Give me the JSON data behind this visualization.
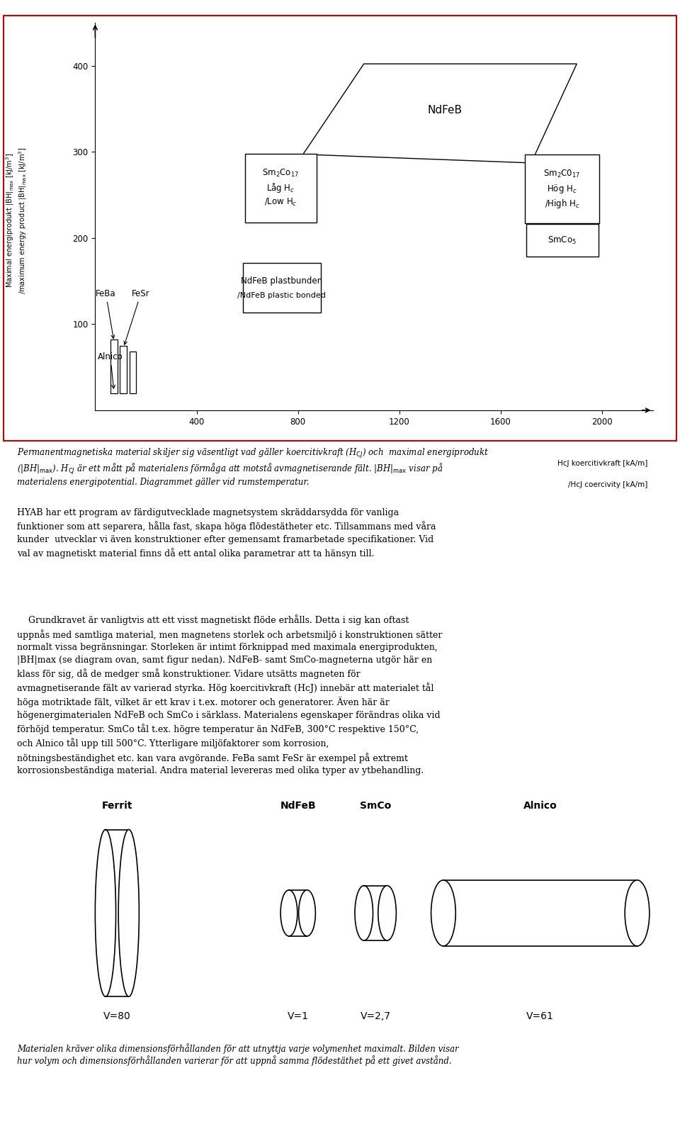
{
  "background_color": "#ffffff",
  "page_width": 9.6,
  "page_height": 15.86,
  "chart": {
    "xlim": [
      0,
      2200
    ],
    "ylim": [
      0,
      450
    ],
    "xticks": [
      400,
      800,
      1200,
      1600,
      2000
    ],
    "yticks": [
      100,
      200,
      300,
      400
    ],
    "xlabel_line1": "HᴄJ koercitivkraft [kA/m]",
    "xlabel_line2": "/HᴄJ coercivity [kA/m]"
  },
  "caption_italic": "Permanentmagnetiska material skiljer sig väsentligt vad gäller koercitivkraft (HᴄJ) och  maximal energiprodukt\n(|BH|max). HᴄJ är ett mått på materialens förmåga att motstå avmagnetiserande fält. |BH|max visar på\nmaterialens energipotential. Diagrammet gäller vid rumstemperatur.",
  "para1": "HYAB har ett program av färdigutvecklade magnetsystem skräddarsydda för vanliga\nfunktioner som att separera, hålla fast, skapa höga flödestätheter etc. Tillsammans med våra\nkunder  utvecklar vi även konstruktioner efter gemensamt framarbetade specifikationer. Vid\nval av magnetiskt material finns då ett antal olika parametrar att ta hänsyn till.",
  "para2": "    Grundkravet är vanligtvis att ett visst magnetiskt flöde erhålls. Detta i sig kan oftast\nuppnås med samtliga material, men magnetens storlek och arbetsmiljö i konstruktionen sätter\nnormalt vissa begränsningar. Storleken är intimt förknippad med maximala energiprodukten,\n|BH|max (se diagram ovan, samt figur nedan). NdFeB- samt SmCo-magneterna utgör här en\nklass för sig, då de medger små konstruktioner. Vidare utsätts magneten för\navmagnetiserande fält av varierad styrka. Hög koercitivkraft (HcJ) innebär att materialet tål\nhöga motriktade fält, vilket är ett krav i t.ex. motorer och generatorer. Även här är\nhögenergimaterialen NdFeB och SmCo i särklass. Materialens egenskaper förändras olika vid\nförhöjd temperatur. SmCo tål t.ex. högre temperatur än NdFeB, 300°C respektive 150°C,\noch Alnico tål upp till 500°C. Ytterligare miljöfaktorer som korrosion,\nnötningsbeständighet etc. kan vara avgörande. FeBa samt FeSr är exempel på extremt\nkorrosionsbeständiga material. Andra material levereras med olika typer av ytbehandling.",
  "caption_bottom": "Materialen kräver olika dimensionsförhållanden för att utnyttja varje volymenhet maximalt. Bilden visar\nhur volym och dimensionsförhållanden varierar för att uppnå samma flödestäthet på ett givet avstånd.",
  "cylinder_labels": [
    "Ferrit",
    "NdFeB",
    "SmCo",
    "Alnico"
  ],
  "cylinder_volumes": [
    "V=80",
    "V=1",
    "V=2,7",
    "V=61"
  ]
}
